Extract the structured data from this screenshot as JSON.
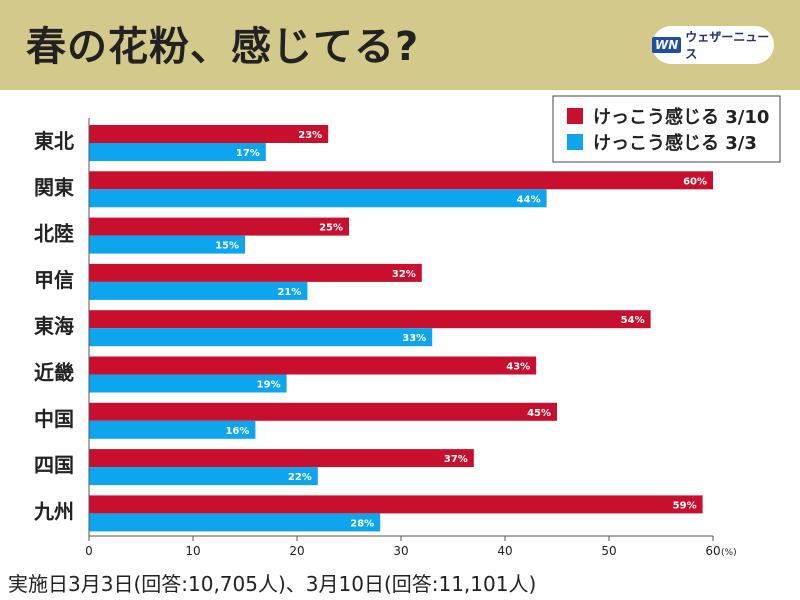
{
  "header": {
    "title": "春の花粉、感じてる?",
    "brand_mark": "WN",
    "brand_name": "ウェザーニュース"
  },
  "footnote": "実施日3月3日(回答:10,705人)、3月10日(回答:11,101人)",
  "colors": {
    "series1": "#c8102e",
    "series2": "#0ea5ef",
    "header_bg": "#d3c98a"
  },
  "chart_data": {
    "type": "bar",
    "orientation": "horizontal",
    "categories": [
      "東北",
      "関東",
      "北陸",
      "甲信",
      "東海",
      "近畿",
      "中国",
      "四国",
      "九州"
    ],
    "series": [
      {
        "name": "けっこう感じる 3/10",
        "values": [
          23,
          60,
          25,
          32,
          54,
          43,
          45,
          37,
          59
        ],
        "color": "#c8102e"
      },
      {
        "name": "けっこう感じる 3/3",
        "values": [
          17,
          44,
          15,
          21,
          33,
          19,
          16,
          22,
          28
        ],
        "color": "#0ea5ef"
      }
    ],
    "xlim": [
      0,
      60
    ],
    "xticks": [
      0,
      10,
      20,
      30,
      40,
      50,
      60
    ],
    "x_unit": "(%)",
    "value_suffix": "%",
    "legend_position": "top-right",
    "grid": false
  }
}
